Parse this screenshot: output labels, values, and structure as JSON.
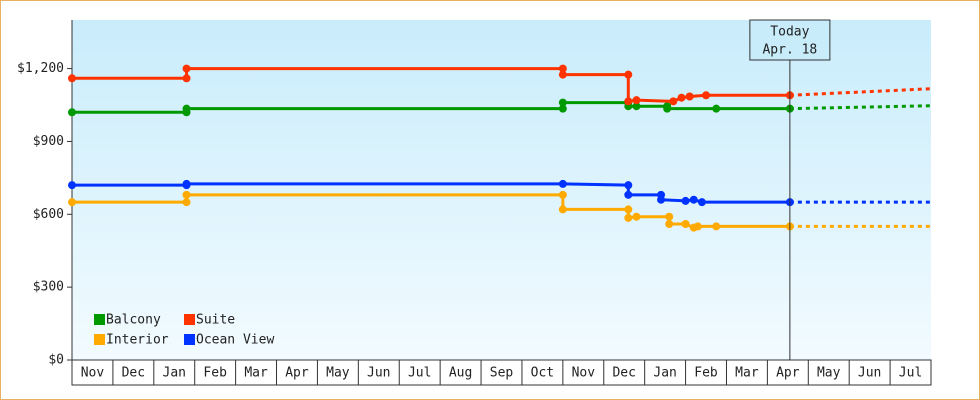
{
  "chart_data": {
    "type": "step-line",
    "xlim": [
      0,
      21
    ],
    "xticks": [
      {
        "value": 0.5,
        "label": "Nov"
      },
      {
        "value": 1.5,
        "label": "Dec"
      },
      {
        "value": 2.5,
        "label": "Jan"
      },
      {
        "value": 3.5,
        "label": "Feb"
      },
      {
        "value": 4.5,
        "label": "Mar"
      },
      {
        "value": 5.5,
        "label": "Apr"
      },
      {
        "value": 6.5,
        "label": "May"
      },
      {
        "value": 7.5,
        "label": "Jun"
      },
      {
        "value": 8.5,
        "label": "Jul"
      },
      {
        "value": 9.5,
        "label": "Aug"
      },
      {
        "value": 10.5,
        "label": "Sep"
      },
      {
        "value": 11.5,
        "label": "Oct"
      },
      {
        "value": 12.5,
        "label": "Nov"
      },
      {
        "value": 13.5,
        "label": "Dec"
      },
      {
        "value": 14.5,
        "label": "Jan"
      },
      {
        "value": 15.5,
        "label": "Feb"
      },
      {
        "value": 16.5,
        "label": "Mar"
      },
      {
        "value": 17.5,
        "label": "Apr"
      },
      {
        "value": 18.5,
        "label": "May"
      },
      {
        "value": 19.5,
        "label": "Jun"
      },
      {
        "value": 20.5,
        "label": "Jul"
      }
    ],
    "ylim": [
      0,
      1400
    ],
    "yticks": [
      {
        "value": 0,
        "label": "$0"
      },
      {
        "value": 300,
        "label": "$300"
      },
      {
        "value": 600,
        "label": "$600"
      },
      {
        "value": 900,
        "label": "$900"
      },
      {
        "value": 1200,
        "label": "$1,200"
      }
    ],
    "today": {
      "x": 17.55,
      "label": "Today",
      "date": "Apr. 18"
    },
    "series": [
      {
        "name": "Balcony",
        "color": "#009900",
        "x": [
          0,
          2.8,
          2.8,
          12.0,
          12.0,
          13.6,
          13.6,
          13.8,
          14.55,
          14.55,
          15.75,
          17.55
        ],
        "values": [
          1020,
          1020,
          1035,
          1035,
          1060,
          1060,
          1045,
          1045,
          1045,
          1035,
          1035,
          1035
        ],
        "forecast": 1047
      },
      {
        "name": "Suite",
        "color": "#ff3300",
        "x": [
          0,
          2.8,
          2.8,
          12.0,
          12.0,
          13.6,
          13.6,
          13.8,
          14.7,
          14.9,
          15.1,
          15.5,
          17.55
        ],
        "values": [
          1160,
          1160,
          1200,
          1200,
          1175,
          1175,
          1065,
          1070,
          1065,
          1080,
          1085,
          1090,
          1090
        ],
        "forecast": 1117
      },
      {
        "name": "Interior",
        "color": "#ffaa00",
        "x": [
          0,
          2.8,
          2.8,
          12.0,
          12.0,
          13.6,
          13.6,
          13.8,
          14.6,
          14.6,
          15.0,
          15.2,
          15.3,
          15.75,
          17.55
        ],
        "values": [
          650,
          650,
          680,
          680,
          620,
          620,
          585,
          590,
          590,
          560,
          560,
          545,
          550,
          550,
          550
        ],
        "forecast": 550
      },
      {
        "name": "Ocean View",
        "color": "#0033ff",
        "x": [
          0,
          2.8,
          2.8,
          12.0,
          13.6,
          13.6,
          14.4,
          14.4,
          15.0,
          15.2,
          15.4,
          17.55
        ],
        "values": [
          720,
          720,
          725,
          725,
          720,
          680,
          680,
          660,
          655,
          660,
          650,
          650
        ],
        "forecast": 650
      }
    ]
  }
}
